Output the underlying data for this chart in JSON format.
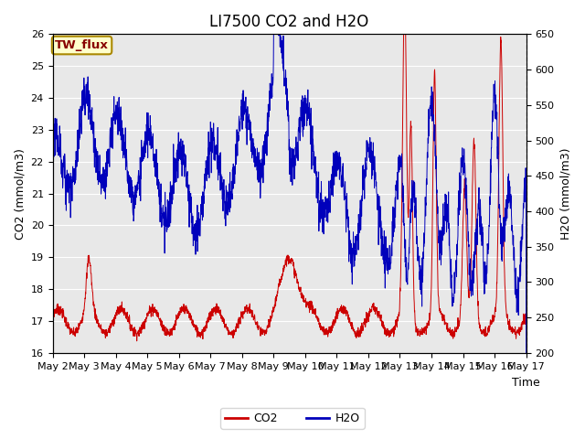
{
  "title": "LI7500 CO2 and H2O",
  "xlabel": "Time",
  "ylabel_left": "CO2 (mmol/m3)",
  "ylabel_right": "H2O (mmol/m3)",
  "ylim_left": [
    16.0,
    26.0
  ],
  "ylim_right": [
    200,
    650
  ],
  "yticks_left": [
    16.0,
    17.0,
    18.0,
    19.0,
    20.0,
    21.0,
    22.0,
    23.0,
    24.0,
    25.0,
    26.0
  ],
  "yticks_right": [
    200,
    250,
    300,
    350,
    400,
    450,
    500,
    550,
    600,
    650
  ],
  "xtick_labels": [
    "May 2",
    "May 3",
    "May 4",
    "May 5",
    "May 6",
    "May 7",
    "May 8",
    "May 9",
    "May 10",
    "May 11",
    "May 12",
    "May 13",
    "May 14",
    "May 15",
    "May 16",
    "May 17"
  ],
  "co2_color": "#cc0000",
  "h2o_color": "#0000bb",
  "background_color": "#e8e8e8",
  "fig_background": "#ffffff",
  "annotation_text": "TW_flux",
  "annotation_bg": "#ffffcc",
  "annotation_border": "#aa8800",
  "annotation_text_color": "#880000",
  "legend_co2": "CO2",
  "legend_h2o": "H2O",
  "title_fontsize": 12,
  "axis_fontsize": 9,
  "tick_fontsize": 8,
  "legend_fontsize": 9
}
